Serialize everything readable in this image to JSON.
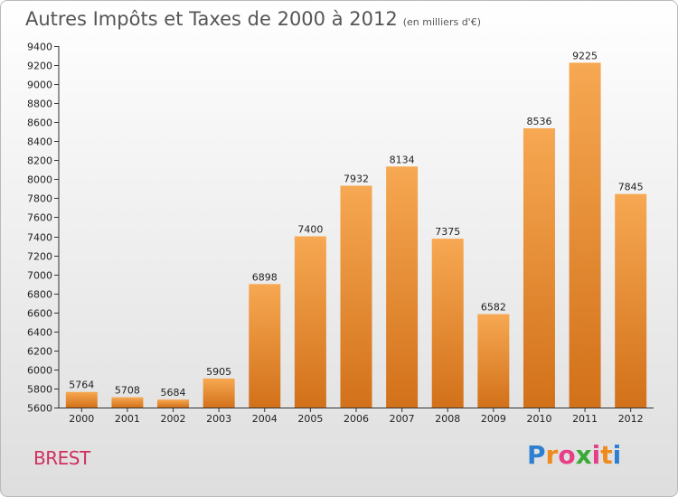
{
  "header": {
    "title": "Autres Impôts et Taxes de 2000 à 2012",
    "unit": "(en milliers d'€)"
  },
  "footer": {
    "city": "BREST",
    "logo_letters": [
      "P",
      "r",
      "o",
      "x",
      "i",
      "t",
      "i"
    ],
    "logo_colors": [
      "#2e7fd0",
      "#f08a1c",
      "#e63f87",
      "#3aa936",
      "#e63f87",
      "#f08a1c",
      "#2e7fd0"
    ]
  },
  "chart_data": {
    "type": "bar",
    "title": "Autres Impôts et Taxes de 2000 à 2012",
    "subtitle": "(en milliers d'€)",
    "categories": [
      "2000",
      "2001",
      "2002",
      "2003",
      "2004",
      "2005",
      "2006",
      "2007",
      "2008",
      "2009",
      "2010",
      "2011",
      "2012"
    ],
    "values": [
      5764,
      5708,
      5684,
      5905,
      6898,
      7400,
      7932,
      8134,
      7375,
      6582,
      8536,
      9225,
      7845
    ],
    "xlabel": "",
    "ylabel": "",
    "ylim": [
      5600,
      9400
    ],
    "yticks": [
      5600,
      5800,
      6000,
      6200,
      6400,
      6600,
      6800,
      7000,
      7200,
      7400,
      7600,
      7800,
      8000,
      8200,
      8400,
      8600,
      8800,
      9000,
      9200,
      9400
    ],
    "grid": false,
    "legend": "none",
    "bar_color_top": "#f7a852",
    "bar_color_bottom": "#d2711a",
    "show_value_labels": true
  }
}
